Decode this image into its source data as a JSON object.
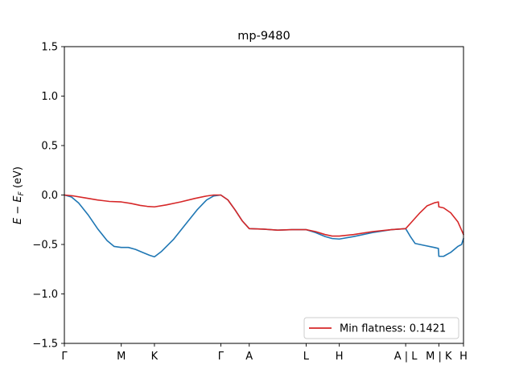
{
  "chart_data": {
    "type": "line",
    "title": "mp-9480",
    "ylabel": "E − E_F (eV)",
    "ylabel_parts": {
      "e": "E",
      "minus": " − ",
      "ef": "E",
      "ef_sub": "F",
      "unit": " (eV)"
    },
    "xlabel": "",
    "ylim": [
      -1.5,
      1.5
    ],
    "xlim": [
      0,
      8.42
    ],
    "yticks": [
      {
        "value": 1.5,
        "label": "1.5"
      },
      {
        "value": 1.0,
        "label": "1.0"
      },
      {
        "value": 0.5,
        "label": "0.5"
      },
      {
        "value": 0.0,
        "label": "0.0"
      },
      {
        "value": -0.5,
        "label": "−0.5"
      },
      {
        "value": -1.0,
        "label": "−1.0"
      },
      {
        "value": -1.5,
        "label": "−1.5"
      }
    ],
    "xticks": [
      {
        "value": 0,
        "label": "Γ"
      },
      {
        "value": 1.2,
        "label": "M"
      },
      {
        "value": 1.9,
        "label": "K"
      },
      {
        "value": 3.3,
        "label": "Γ"
      },
      {
        "value": 3.9,
        "label": "A"
      },
      {
        "value": 5.1,
        "label": "L"
      },
      {
        "value": 5.8,
        "label": "H"
      },
      {
        "value": 7.2,
        "label": "A | L"
      },
      {
        "value": 7.9,
        "label": "M | K"
      },
      {
        "value": 8.42,
        "label": "H"
      }
    ],
    "legend": {
      "position": "lower-right",
      "entries": [
        "Min flatness: 0.1421"
      ]
    },
    "grid": false,
    "series": [
      {
        "color": "#1f77b4",
        "points": [
          [
            0,
            0.0
          ],
          [
            0.15,
            -0.02
          ],
          [
            0.3,
            -0.08
          ],
          [
            0.5,
            -0.2
          ],
          [
            0.7,
            -0.34
          ],
          [
            0.9,
            -0.46
          ],
          [
            1.05,
            -0.52
          ],
          [
            1.2,
            -0.53
          ],
          [
            1.35,
            -0.53
          ],
          [
            1.5,
            -0.55
          ],
          [
            1.65,
            -0.58
          ],
          [
            1.8,
            -0.61
          ],
          [
            1.9,
            -0.625
          ],
          [
            2.05,
            -0.57
          ],
          [
            2.3,
            -0.45
          ],
          [
            2.55,
            -0.3
          ],
          [
            2.8,
            -0.15
          ],
          [
            3.0,
            -0.05
          ],
          [
            3.15,
            -0.01
          ],
          [
            3.3,
            0.0
          ],
          [
            3.45,
            -0.05
          ],
          [
            3.6,
            -0.15
          ],
          [
            3.75,
            -0.26
          ],
          [
            3.9,
            -0.34
          ],
          [
            4.2,
            -0.345
          ],
          [
            4.5,
            -0.355
          ],
          [
            4.8,
            -0.35
          ],
          [
            5.1,
            -0.35
          ],
          [
            5.3,
            -0.38
          ],
          [
            5.5,
            -0.42
          ],
          [
            5.65,
            -0.44
          ],
          [
            5.8,
            -0.445
          ],
          [
            6.1,
            -0.42
          ],
          [
            6.5,
            -0.38
          ],
          [
            6.9,
            -0.35
          ],
          [
            7.2,
            -0.34
          ],
          [
            7.3,
            -0.42
          ],
          [
            7.4,
            -0.49
          ],
          [
            7.6,
            -0.51
          ],
          [
            7.8,
            -0.53
          ],
          [
            7.89,
            -0.54
          ],
          [
            7.9,
            -0.62
          ],
          [
            8.0,
            -0.62
          ],
          [
            8.15,
            -0.58
          ],
          [
            8.3,
            -0.52
          ],
          [
            8.38,
            -0.5
          ],
          [
            8.42,
            -0.44
          ]
        ]
      },
      {
        "color": "#d62728",
        "points": [
          [
            0,
            0.0
          ],
          [
            0.2,
            -0.01
          ],
          [
            0.45,
            -0.03
          ],
          [
            0.7,
            -0.05
          ],
          [
            0.95,
            -0.065
          ],
          [
            1.2,
            -0.07
          ],
          [
            1.4,
            -0.085
          ],
          [
            1.6,
            -0.105
          ],
          [
            1.75,
            -0.115
          ],
          [
            1.9,
            -0.12
          ],
          [
            2.15,
            -0.1
          ],
          [
            2.45,
            -0.07
          ],
          [
            2.75,
            -0.035
          ],
          [
            3.0,
            -0.01
          ],
          [
            3.15,
            0.0
          ],
          [
            3.3,
            0.0
          ],
          [
            3.45,
            -0.05
          ],
          [
            3.6,
            -0.15
          ],
          [
            3.75,
            -0.26
          ],
          [
            3.9,
            -0.34
          ],
          [
            4.2,
            -0.345
          ],
          [
            4.5,
            -0.355
          ],
          [
            4.8,
            -0.35
          ],
          [
            5.1,
            -0.35
          ],
          [
            5.3,
            -0.37
          ],
          [
            5.5,
            -0.4
          ],
          [
            5.65,
            -0.415
          ],
          [
            5.8,
            -0.415
          ],
          [
            6.1,
            -0.4
          ],
          [
            6.5,
            -0.37
          ],
          [
            6.9,
            -0.35
          ],
          [
            7.2,
            -0.34
          ],
          [
            7.35,
            -0.26
          ],
          [
            7.5,
            -0.18
          ],
          [
            7.65,
            -0.11
          ],
          [
            7.8,
            -0.08
          ],
          [
            7.89,
            -0.07
          ],
          [
            7.9,
            -0.12
          ],
          [
            8.0,
            -0.13
          ],
          [
            8.15,
            -0.18
          ],
          [
            8.3,
            -0.27
          ],
          [
            8.42,
            -0.4
          ]
        ]
      }
    ]
  }
}
